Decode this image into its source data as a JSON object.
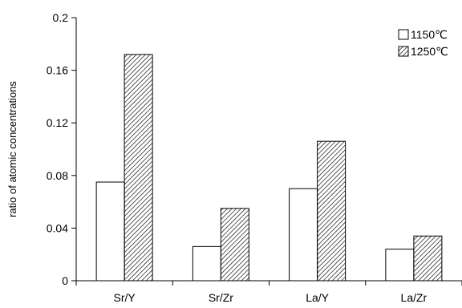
{
  "chart_data": {
    "type": "bar",
    "categories": [
      "Sr/Y",
      "Sr/Zr",
      "La/Y",
      "La/Zr"
    ],
    "series": [
      {
        "name": "1150℃",
        "values": [
          0.075,
          0.026,
          0.07,
          0.024
        ],
        "fill": "open"
      },
      {
        "name": "1250℃",
        "values": [
          0.172,
          0.055,
          0.106,
          0.034
        ],
        "fill": "hatched"
      }
    ],
    "ylabel": "ratio of atomic concentrations",
    "ylim": [
      0,
      0.2
    ],
    "yticks": [
      "0",
      "0.04",
      "0.08",
      "0.12",
      "0.16",
      "0.2"
    ],
    "grid": false,
    "legend_position": "top-right",
    "colors": {
      "stroke": "#000000",
      "background": "#ffffff"
    }
  }
}
